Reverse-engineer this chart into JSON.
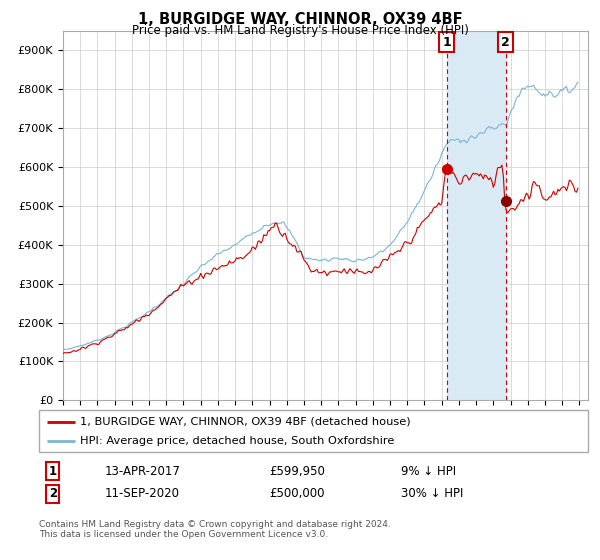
{
  "title": "1, BURGIDGE WAY, CHINNOR, OX39 4BF",
  "subtitle": "Price paid vs. HM Land Registry's House Price Index (HPI)",
  "ytick_values": [
    0,
    100000,
    200000,
    300000,
    400000,
    500000,
    600000,
    700000,
    800000,
    900000
  ],
  "ylim": [
    0,
    950000
  ],
  "xlim_start": 1995.0,
  "xlim_end": 2025.5,
  "hpi_color": "#7ab5d8",
  "price_color": "#cc0000",
  "shading_color": "#daeaf5",
  "marker1_x": 2017.28,
  "marker1_y": 599950,
  "marker1_label": "1",
  "marker2_x": 2020.71,
  "marker2_y": 500000,
  "marker2_label": "2",
  "legend_line1": "1, BURGIDGE WAY, CHINNOR, OX39 4BF (detached house)",
  "legend_line2": "HPI: Average price, detached house, South Oxfordshire",
  "annotation1_num": "1",
  "annotation1_date": "13-APR-2017",
  "annotation1_price": "£599,950",
  "annotation1_hpi": "9% ↓ HPI",
  "annotation2_num": "2",
  "annotation2_date": "11-SEP-2020",
  "annotation2_price": "£500,000",
  "annotation2_hpi": "30% ↓ HPI",
  "footer": "Contains HM Land Registry data © Crown copyright and database right 2024.\nThis data is licensed under the Open Government Licence v3.0.",
  "background_color": "#ffffff",
  "grid_color": "#cccccc"
}
